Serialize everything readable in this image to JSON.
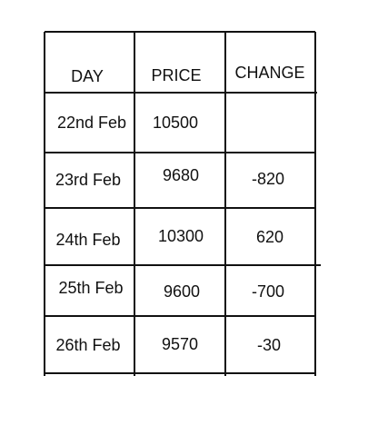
{
  "table": {
    "headers": {
      "day": "DAY",
      "price": "PRICE",
      "change": "CHANGE"
    },
    "rows": [
      {
        "day": "22nd Feb",
        "price": "10500",
        "change": ""
      },
      {
        "day": "23rd Feb",
        "price": "9680",
        "change": "-820"
      },
      {
        "day": "24th Feb",
        "price": "10300",
        "change": "620"
      },
      {
        "day": "25th Feb",
        "price": "9600",
        "change": "-700"
      },
      {
        "day": "26th Feb",
        "price": "9570",
        "change": "-30"
      }
    ]
  }
}
